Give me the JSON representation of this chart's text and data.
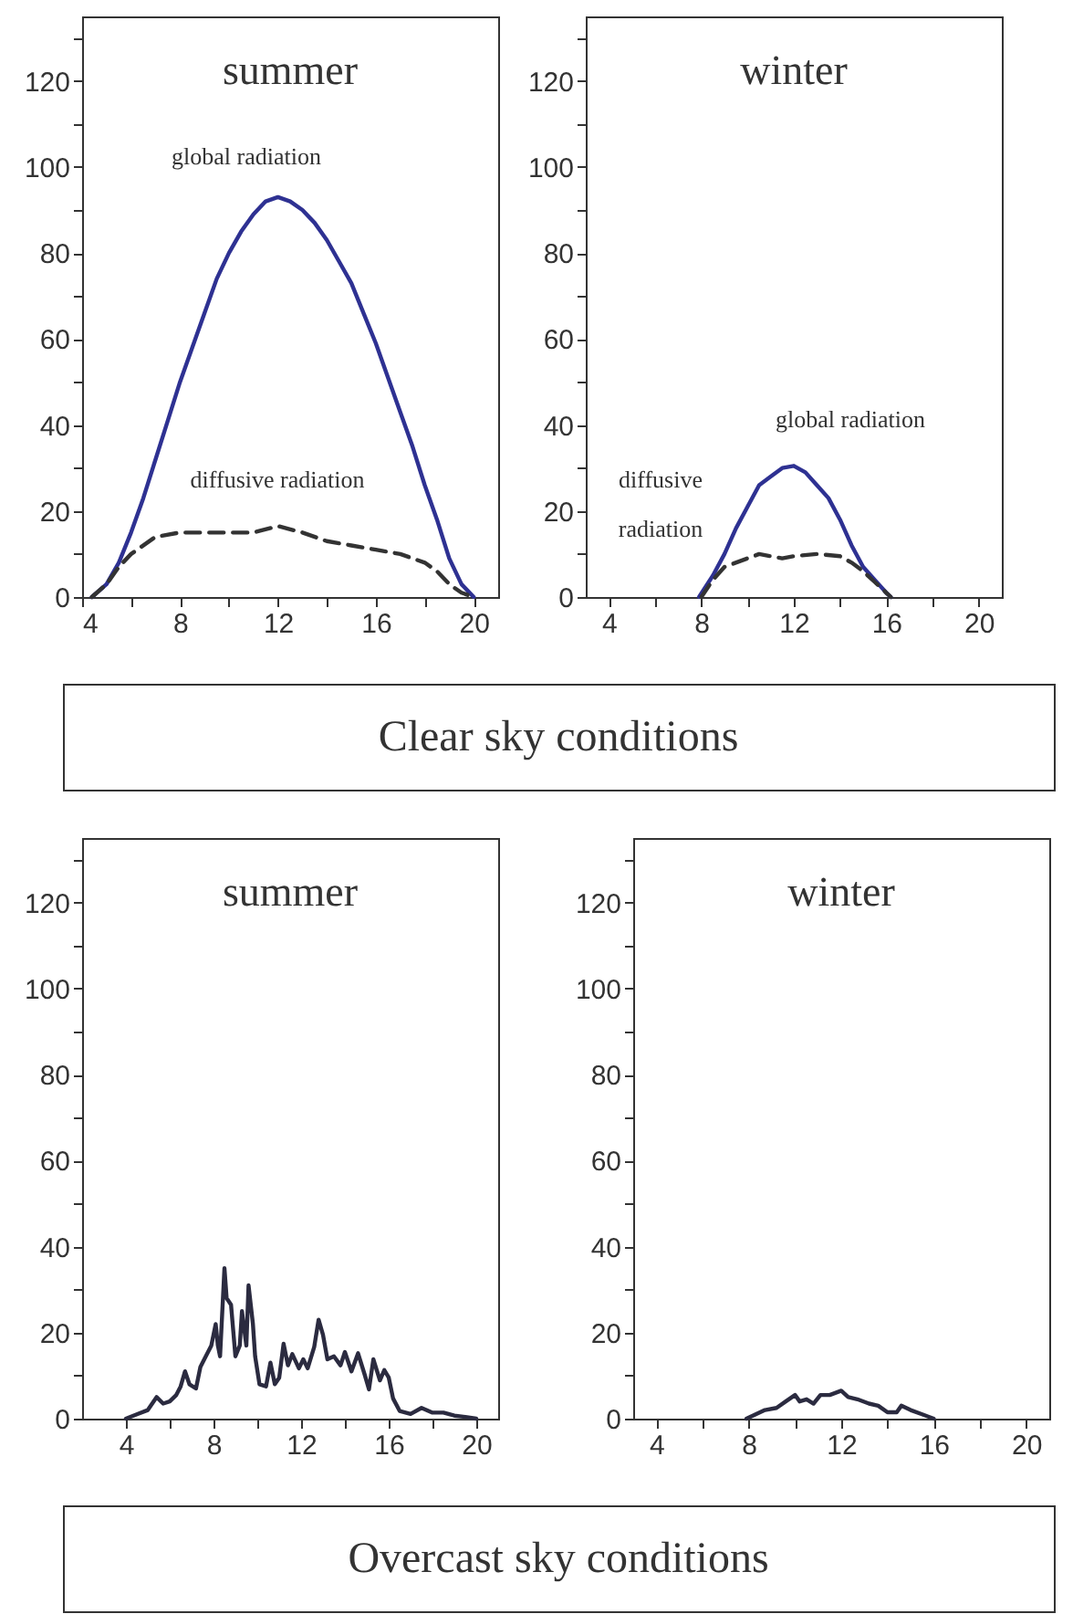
{
  "chart_data": [
    {
      "type": "line",
      "title": "summer",
      "xlim": [
        4,
        21
      ],
      "ylim": [
        0,
        135
      ],
      "xticks": [
        4,
        {
          "value": 6,
          "label": null
        },
        8,
        {
          "value": 10,
          "label": null
        },
        12,
        {
          "value": 14,
          "label": null
        },
        16,
        {
          "value": 18,
          "label": null
        },
        20
      ],
      "yticks": [
        0,
        {
          "value": 10,
          "label": null
        },
        20,
        {
          "value": 30,
          "label": null
        },
        40,
        {
          "value": 50,
          "label": null
        },
        60,
        {
          "value": 70,
          "label": null
        },
        80,
        {
          "value": 90,
          "label": null
        },
        100,
        {
          "value": 110,
          "label": null
        },
        120,
        {
          "value": 130,
          "label": null
        }
      ],
      "series": [
        {
          "color": "#2e3192",
          "line_style": "solid",
          "x": [
            4.4,
            5,
            5.5,
            6,
            6.5,
            7,
            7.5,
            8,
            8.5,
            9,
            9.5,
            10,
            10.5,
            11,
            11.5,
            12,
            12.5,
            13,
            13.5,
            14,
            14.5,
            15,
            15.5,
            16,
            16.5,
            17,
            17.5,
            18,
            18.5,
            19,
            19.5,
            20
          ],
          "values": [
            0,
            3,
            8,
            15,
            23,
            32,
            41,
            50,
            58,
            66,
            74,
            80,
            85,
            89,
            92,
            93,
            92,
            90,
            87,
            83,
            78,
            73,
            66,
            59,
            51,
            43,
            35,
            26,
            18,
            9,
            3,
            0
          ]
        },
        {
          "color": "#333333",
          "line_style": "dashed",
          "x": [
            4.4,
            5,
            5.5,
            6,
            7,
            8,
            9,
            10,
            11,
            12,
            13,
            14,
            15,
            16,
            17,
            18,
            18.5,
            19,
            19.5,
            20
          ],
          "values": [
            0,
            3,
            7,
            10,
            14,
            15,
            15,
            15,
            15,
            16.5,
            15,
            13,
            12,
            11,
            10,
            8,
            6,
            3,
            1,
            0
          ]
        }
      ],
      "annotations": [
        "global radiation",
        "diffusive radiation"
      ]
    },
    {
      "type": "line",
      "title": "winter",
      "xlim": [
        3,
        21
      ],
      "ylim": [
        0,
        135
      ],
      "xticks": [
        4,
        {
          "value": 6,
          "label": null
        },
        8,
        {
          "value": 10,
          "label": null
        },
        12,
        {
          "value": 14,
          "label": null
        },
        16,
        {
          "value": 18,
          "label": null
        },
        20
      ],
      "yticks": [
        0,
        {
          "value": 10,
          "label": null
        },
        20,
        {
          "value": 30,
          "label": null
        },
        40,
        {
          "value": 50,
          "label": null
        },
        60,
        {
          "value": 70,
          "label": null
        },
        80,
        {
          "value": 90,
          "label": null
        },
        100,
        {
          "value": 110,
          "label": null
        },
        120,
        {
          "value": 130,
          "label": null
        }
      ],
      "series": [
        {
          "color": "#2e3192",
          "line_style": "solid",
          "x": [
            7.9,
            8.5,
            9,
            9.5,
            10,
            10.5,
            11,
            11.5,
            12,
            12.5,
            13,
            13.5,
            14,
            14.5,
            15,
            15.5,
            16,
            16.2
          ],
          "values": [
            0,
            5,
            10,
            16,
            21,
            26,
            28,
            30,
            30.5,
            29,
            26,
            23,
            18,
            12,
            7,
            4,
            1,
            0
          ]
        },
        {
          "color": "#333333",
          "line_style": "dashed",
          "x": [
            8,
            8.5,
            9,
            10,
            10.5,
            11,
            11.5,
            12,
            13,
            14,
            14.5,
            15,
            15.5,
            16,
            16.2
          ],
          "values": [
            0,
            4,
            7,
            9,
            10,
            9.5,
            9,
            9.5,
            10,
            9.5,
            8,
            6,
            3.5,
            1,
            0
          ]
        }
      ],
      "annotations": [
        "global radiation",
        "diffusive",
        "radiation"
      ]
    },
    {
      "type": "other",
      "title": "Clear sky conditions"
    },
    {
      "type": "line",
      "title": "summer",
      "xlim": [
        2,
        21
      ],
      "ylim": [
        0,
        135
      ],
      "xticks": [
        4,
        {
          "value": 6,
          "label": null
        },
        8,
        {
          "value": 10,
          "label": null
        },
        12,
        {
          "value": 14,
          "label": null
        },
        16,
        {
          "value": 18,
          "label": null
        },
        20
      ],
      "yticks": [
        0,
        {
          "value": 10,
          "label": null
        },
        20,
        {
          "value": 30,
          "label": null
        },
        40,
        {
          "value": 50,
          "label": null
        },
        60,
        {
          "value": 70,
          "label": null
        },
        80,
        {
          "value": 90,
          "label": null
        },
        100,
        {
          "value": 110,
          "label": null
        },
        120,
        {
          "value": 130,
          "label": null
        }
      ],
      "series": [
        {
          "color": "#2b2b40",
          "line_style": "solid",
          "x": [
            4,
            4.5,
            5,
            5.4,
            5.7,
            6,
            6.3,
            6.5,
            6.7,
            6.9,
            7.2,
            7.4,
            7.6,
            7.9,
            8,
            8.1,
            8.2,
            8.3,
            8.5,
            8.6,
            8.8,
            9,
            9.2,
            9.3,
            9.5,
            9.6,
            9.8,
            9.9,
            10.1,
            10.4,
            10.6,
            10.8,
            11,
            11.2,
            11.4,
            11.6,
            11.9,
            12.1,
            12.3,
            12.6,
            12.8,
            13,
            13.2,
            13.5,
            13.8,
            14,
            14.3,
            14.6,
            14.9,
            15.1,
            15.3,
            15.6,
            15.8,
            16,
            16.2,
            16.5,
            17,
            17.5,
            18,
            18.5,
            19,
            19.5,
            20
          ],
          "values": [
            0,
            1,
            2,
            5,
            3.5,
            4,
            5.5,
            7.5,
            11,
            8,
            7,
            12,
            14,
            17,
            19.5,
            22,
            17,
            14.5,
            35,
            28,
            26.5,
            14.5,
            17,
            25,
            17,
            31,
            22,
            14.5,
            8,
            7.5,
            13,
            8,
            9.5,
            17.4,
            12.4,
            15,
            11.7,
            13.8,
            11.7,
            16.7,
            23,
            19.5,
            13.8,
            14.5,
            12.4,
            15.5,
            11,
            15.2,
            10.3,
            6.8,
            13.8,
            8.9,
            11.3,
            9.6,
            4.7,
            1.8,
            1.1,
            2.5,
            1.4,
            1.4,
            0.7,
            0.4,
            0
          ]
        }
      ]
    },
    {
      "type": "line",
      "title": "winter",
      "xlim": [
        3,
        21
      ],
      "ylim": [
        0,
        135
      ],
      "xticks": [
        4,
        {
          "value": 6,
          "label": null
        },
        8,
        {
          "value": 10,
          "label": null
        },
        12,
        {
          "value": 14,
          "label": null
        },
        16,
        {
          "value": 18,
          "label": null
        },
        20
      ],
      "yticks": [
        0,
        {
          "value": 10,
          "label": null
        },
        20,
        {
          "value": 30,
          "label": null
        },
        40,
        {
          "value": 50,
          "label": null
        },
        60,
        {
          "value": 70,
          "label": null
        },
        80,
        {
          "value": 90,
          "label": null
        },
        100,
        {
          "value": 110,
          "label": null
        },
        120,
        {
          "value": 130,
          "label": null
        }
      ],
      "series": [
        {
          "color": "#2b2b40",
          "line_style": "solid",
          "x": [
            7.9,
            8.3,
            8.7,
            9.2,
            9.6,
            10,
            10.2,
            10.5,
            10.8,
            11.1,
            11.5,
            12,
            12.3,
            12.7,
            13.2,
            13.6,
            14,
            14.4,
            14.6,
            15,
            15.5,
            16
          ],
          "values": [
            0,
            1,
            2,
            2.5,
            4,
            5.5,
            4,
            4.5,
            3.5,
            5.5,
            5.5,
            6.5,
            5,
            4.5,
            3.5,
            3,
            1.5,
            1.5,
            3,
            2,
            1,
            0
          ]
        }
      ]
    },
    {
      "type": "other",
      "title": "Overcast sky conditions"
    }
  ]
}
